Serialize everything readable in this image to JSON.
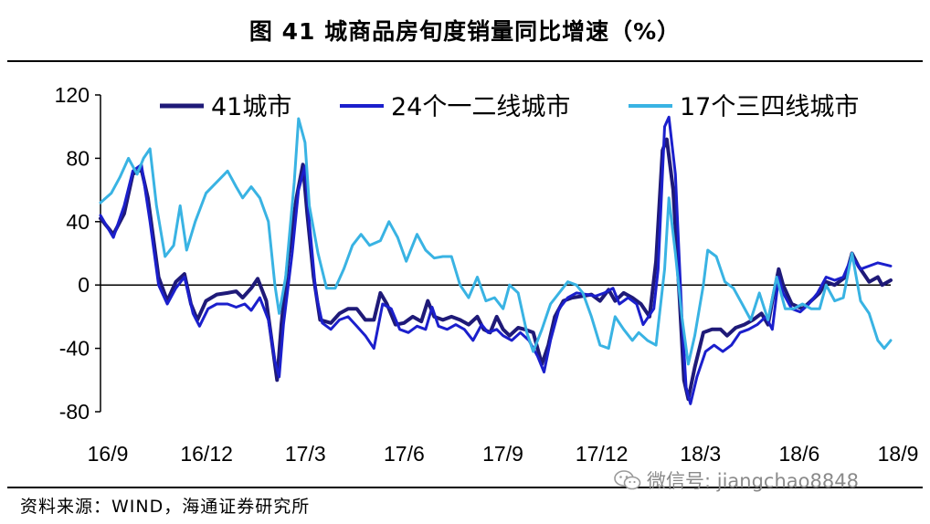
{
  "header": {
    "title": "图 41 城商品房旬度销量同比增速（%）"
  },
  "footer": {
    "source": "资料来源：WIND，海通证券研究所"
  },
  "watermark": {
    "text": "微信号: jiangchao8848",
    "icon": "wechat-icon"
  },
  "chart_data": {
    "type": "line",
    "title": "图 41 城商品房旬度销量同比增速（%）",
    "xlabel": "",
    "ylabel": "",
    "ylim": [
      -80,
      120
    ],
    "yticks": [
      120,
      80,
      40,
      0,
      -40,
      -80
    ],
    "xticks": [
      "16/9",
      "16/12",
      "17/3",
      "17/6",
      "17/9",
      "17/12",
      "18/3",
      "18/6",
      "18/9"
    ],
    "x_start": "16/9",
    "x_step_months": 3,
    "grid": false,
    "zero_line": true,
    "legend": "top",
    "series": [
      {
        "name": "41城市",
        "color": "#1f1a78",
        "stroke_width": 4,
        "points": [
          [
            0,
            42
          ],
          [
            0.3,
            32
          ],
          [
            0.55,
            45
          ],
          [
            0.75,
            70
          ],
          [
            0.95,
            73
          ],
          [
            1.1,
            55
          ],
          [
            1.35,
            5
          ],
          [
            1.55,
            -10
          ],
          [
            1.75,
            2
          ],
          [
            1.95,
            7
          ],
          [
            2.1,
            -12
          ],
          [
            2.25,
            -22
          ],
          [
            2.45,
            -10
          ],
          [
            2.7,
            -6
          ],
          [
            2.95,
            -5
          ],
          [
            3.15,
            -4
          ],
          [
            3.3,
            -8
          ],
          [
            3.5,
            -2
          ],
          [
            3.65,
            4
          ],
          [
            3.85,
            -10
          ],
          [
            4.0,
            -40
          ],
          [
            4.1,
            -60
          ],
          [
            4.2,
            -25
          ],
          [
            4.35,
            15
          ],
          [
            4.55,
            55
          ],
          [
            4.7,
            76
          ],
          [
            4.8,
            45
          ],
          [
            4.95,
            5
          ],
          [
            5.1,
            -22
          ],
          [
            5.35,
            -24
          ],
          [
            5.55,
            -18
          ],
          [
            5.75,
            -15
          ],
          [
            5.95,
            -15
          ],
          [
            6.15,
            -22
          ],
          [
            6.35,
            -22
          ],
          [
            6.5,
            -5
          ],
          [
            6.65,
            -12
          ],
          [
            6.85,
            -25
          ],
          [
            7.05,
            -24
          ],
          [
            7.25,
            -20
          ],
          [
            7.45,
            -23
          ],
          [
            7.6,
            -10
          ],
          [
            7.75,
            -20
          ],
          [
            7.95,
            -22
          ],
          [
            8.15,
            -20
          ],
          [
            8.35,
            -22
          ],
          [
            8.55,
            -25
          ],
          [
            8.75,
            -20
          ],
          [
            8.9,
            -28
          ],
          [
            9.05,
            -30
          ],
          [
            9.2,
            -20
          ],
          [
            9.35,
            -28
          ],
          [
            9.5,
            -32
          ],
          [
            9.7,
            -27
          ],
          [
            9.85,
            -28
          ],
          [
            10.05,
            -30
          ],
          [
            10.25,
            -50
          ],
          [
            10.4,
            -38
          ],
          [
            10.55,
            -20
          ],
          [
            10.75,
            -10
          ],
          [
            10.95,
            -8
          ],
          [
            11.2,
            -7
          ],
          [
            11.4,
            -6
          ],
          [
            11.6,
            -10
          ],
          [
            11.8,
            -3
          ],
          [
            11.95,
            -10
          ],
          [
            12.15,
            -5
          ],
          [
            12.35,
            -8
          ],
          [
            12.55,
            -12
          ],
          [
            12.75,
            -20
          ],
          [
            12.9,
            15
          ],
          [
            13.05,
            85
          ],
          [
            13.15,
            92
          ],
          [
            13.3,
            60
          ],
          [
            13.45,
            -10
          ],
          [
            13.55,
            -60
          ],
          [
            13.65,
            -72
          ],
          [
            13.8,
            -52
          ],
          [
            14.0,
            -30
          ],
          [
            14.2,
            -28
          ],
          [
            14.4,
            -28
          ],
          [
            14.55,
            -32
          ],
          [
            14.75,
            -27
          ],
          [
            14.95,
            -25
          ],
          [
            15.15,
            -22
          ],
          [
            15.35,
            -18
          ],
          [
            15.5,
            -25
          ],
          [
            15.6,
            -10
          ],
          [
            15.75,
            10
          ],
          [
            15.85,
            0
          ],
          [
            16.05,
            -12
          ],
          [
            16.3,
            -15
          ],
          [
            16.5,
            -10
          ],
          [
            16.7,
            -5
          ],
          [
            16.85,
            2
          ],
          [
            17.05,
            0
          ],
          [
            17.3,
            5
          ],
          [
            17.45,
            20
          ],
          [
            17.6,
            12
          ],
          [
            17.85,
            2
          ],
          [
            18.05,
            5
          ],
          [
            18.15,
            0
          ],
          [
            18.35,
            3
          ]
        ]
      },
      {
        "name": "24个一二线城市",
        "color": "#1b1fcc",
        "stroke_width": 3,
        "points": [
          [
            0,
            44
          ],
          [
            0.3,
            30
          ],
          [
            0.55,
            50
          ],
          [
            0.75,
            72
          ],
          [
            0.95,
            76
          ],
          [
            1.15,
            40
          ],
          [
            1.35,
            0
          ],
          [
            1.55,
            -12
          ],
          [
            1.75,
            -2
          ],
          [
            1.95,
            5
          ],
          [
            2.15,
            -18
          ],
          [
            2.3,
            -26
          ],
          [
            2.5,
            -15
          ],
          [
            2.7,
            -12
          ],
          [
            2.95,
            -12
          ],
          [
            3.15,
            -14
          ],
          [
            3.35,
            -12
          ],
          [
            3.5,
            -16
          ],
          [
            3.7,
            -8
          ],
          [
            3.9,
            -22
          ],
          [
            4.05,
            -48
          ],
          [
            4.15,
            -58
          ],
          [
            4.25,
            -25
          ],
          [
            4.45,
            20
          ],
          [
            4.6,
            60
          ],
          [
            4.75,
            75
          ],
          [
            4.85,
            40
          ],
          [
            5.0,
            -5
          ],
          [
            5.15,
            -24
          ],
          [
            5.35,
            -28
          ],
          [
            5.55,
            -22
          ],
          [
            5.75,
            -20
          ],
          [
            5.95,
            -26
          ],
          [
            6.15,
            -32
          ],
          [
            6.35,
            -40
          ],
          [
            6.55,
            -12
          ],
          [
            6.75,
            -15
          ],
          [
            6.95,
            -28
          ],
          [
            7.15,
            -30
          ],
          [
            7.35,
            -26
          ],
          [
            7.55,
            -28
          ],
          [
            7.7,
            -14
          ],
          [
            7.85,
            -26
          ],
          [
            8.05,
            -28
          ],
          [
            8.25,
            -25
          ],
          [
            8.45,
            -28
          ],
          [
            8.65,
            -35
          ],
          [
            8.85,
            -25
          ],
          [
            9.0,
            -30
          ],
          [
            9.2,
            -28
          ],
          [
            9.35,
            -32
          ],
          [
            9.55,
            -35
          ],
          [
            9.75,
            -30
          ],
          [
            9.95,
            -35
          ],
          [
            10.15,
            -45
          ],
          [
            10.3,
            -55
          ],
          [
            10.45,
            -35
          ],
          [
            10.65,
            -15
          ],
          [
            10.85,
            -8
          ],
          [
            11.05,
            -5
          ],
          [
            11.3,
            -6
          ],
          [
            11.5,
            -7
          ],
          [
            11.7,
            -5
          ],
          [
            11.9,
            -2
          ],
          [
            12.05,
            -12
          ],
          [
            12.25,
            -8
          ],
          [
            12.45,
            -12
          ],
          [
            12.6,
            -25
          ],
          [
            12.85,
            -15
          ],
          [
            12.95,
            10
          ],
          [
            13.1,
            100
          ],
          [
            13.2,
            106
          ],
          [
            13.35,
            70
          ],
          [
            13.5,
            -20
          ],
          [
            13.6,
            -65
          ],
          [
            13.7,
            -75
          ],
          [
            13.85,
            -58
          ],
          [
            14.05,
            -42
          ],
          [
            14.25,
            -38
          ],
          [
            14.45,
            -42
          ],
          [
            14.65,
            -38
          ],
          [
            14.85,
            -30
          ],
          [
            15.05,
            -28
          ],
          [
            15.25,
            -25
          ],
          [
            15.45,
            -20
          ],
          [
            15.6,
            -28
          ],
          [
            15.75,
            5
          ],
          [
            15.85,
            -5
          ],
          [
            16.05,
            -15
          ],
          [
            16.25,
            -17
          ],
          [
            16.45,
            -12
          ],
          [
            16.65,
            -5
          ],
          [
            16.85,
            5
          ],
          [
            17.05,
            3
          ],
          [
            17.25,
            5
          ],
          [
            17.45,
            18
          ],
          [
            17.65,
            10
          ],
          [
            17.85,
            12
          ],
          [
            18.05,
            14
          ],
          [
            18.35,
            12
          ]
        ]
      },
      {
        "name": "17个三四线城市",
        "color": "#39b3e3",
        "stroke_width": 3,
        "points": [
          [
            0,
            52
          ],
          [
            0.25,
            58
          ],
          [
            0.45,
            68
          ],
          [
            0.65,
            80
          ],
          [
            0.85,
            70
          ],
          [
            1.0,
            80
          ],
          [
            1.15,
            86
          ],
          [
            1.3,
            50
          ],
          [
            1.5,
            18
          ],
          [
            1.7,
            25
          ],
          [
            1.85,
            50
          ],
          [
            2.0,
            22
          ],
          [
            2.2,
            40
          ],
          [
            2.45,
            58
          ],
          [
            2.7,
            65
          ],
          [
            2.95,
            72
          ],
          [
            3.15,
            62
          ],
          [
            3.3,
            55
          ],
          [
            3.5,
            62
          ],
          [
            3.7,
            55
          ],
          [
            3.9,
            40
          ],
          [
            4.05,
            0
          ],
          [
            4.15,
            -18
          ],
          [
            4.3,
            5
          ],
          [
            4.5,
            65
          ],
          [
            4.6,
            105
          ],
          [
            4.75,
            90
          ],
          [
            4.85,
            50
          ],
          [
            5.05,
            20
          ],
          [
            5.25,
            -2
          ],
          [
            5.45,
            -2
          ],
          [
            5.65,
            10
          ],
          [
            5.85,
            25
          ],
          [
            6.05,
            32
          ],
          [
            6.25,
            25
          ],
          [
            6.5,
            28
          ],
          [
            6.7,
            40
          ],
          [
            6.9,
            30
          ],
          [
            7.1,
            15
          ],
          [
            7.35,
            32
          ],
          [
            7.55,
            22
          ],
          [
            7.75,
            17
          ],
          [
            7.95,
            18
          ],
          [
            8.15,
            18
          ],
          [
            8.35,
            0
          ],
          [
            8.55,
            -8
          ],
          [
            8.75,
            5
          ],
          [
            8.95,
            -10
          ],
          [
            9.15,
            -8
          ],
          [
            9.35,
            -15
          ],
          [
            9.5,
            0
          ],
          [
            9.7,
            -5
          ],
          [
            9.9,
            -30
          ],
          [
            10.05,
            -42
          ],
          [
            10.25,
            -28
          ],
          [
            10.45,
            -12
          ],
          [
            10.65,
            -5
          ],
          [
            10.85,
            2
          ],
          [
            11.05,
            0
          ],
          [
            11.2,
            -5
          ],
          [
            11.4,
            -20
          ],
          [
            11.6,
            -38
          ],
          [
            11.8,
            -40
          ],
          [
            11.95,
            -20
          ],
          [
            12.15,
            -28
          ],
          [
            12.35,
            -35
          ],
          [
            12.5,
            -30
          ],
          [
            12.7,
            -35
          ],
          [
            12.9,
            -38
          ],
          [
            13.1,
            10
          ],
          [
            13.2,
            55
          ],
          [
            13.35,
            20
          ],
          [
            13.5,
            -20
          ],
          [
            13.65,
            -50
          ],
          [
            13.8,
            -32
          ],
          [
            14.0,
            0
          ],
          [
            14.1,
            22
          ],
          [
            14.3,
            18
          ],
          [
            14.5,
            2
          ],
          [
            14.7,
            -2
          ],
          [
            14.9,
            -12
          ],
          [
            15.1,
            -22
          ],
          [
            15.3,
            -5
          ],
          [
            15.5,
            -22
          ],
          [
            15.7,
            5
          ],
          [
            15.9,
            -15
          ],
          [
            16.1,
            -15
          ],
          [
            16.3,
            -12
          ],
          [
            16.5,
            -15
          ],
          [
            16.7,
            -15
          ],
          [
            16.85,
            0
          ],
          [
            17.05,
            -10
          ],
          [
            17.25,
            -8
          ],
          [
            17.45,
            20
          ],
          [
            17.65,
            -10
          ],
          [
            17.85,
            -18
          ],
          [
            18.05,
            -35
          ],
          [
            18.2,
            -40
          ],
          [
            18.35,
            -35
          ]
        ]
      }
    ]
  }
}
